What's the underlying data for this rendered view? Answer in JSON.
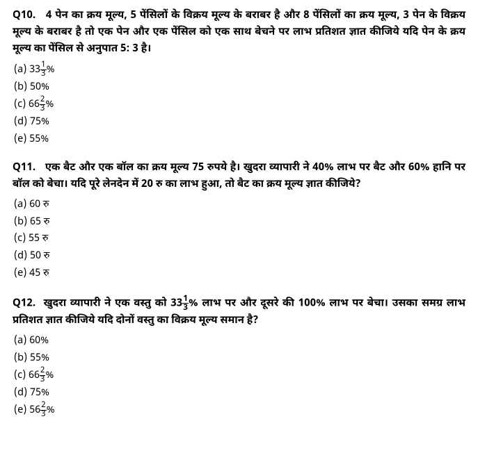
{
  "questions": [
    {
      "num": "Q10.",
      "text_parts": [
        "4 पेन का क्रय मूल्य, 5 पेंसिलों के विक्रय मूल्य के बराबर है और 8 पेंसिलों का क्रय मूल्य, 3 पेन के विक्रय मूल्य के बराबर है तो एक पेन और एक पेंसिल को एक साथ बेचने पर लाभ प्रतिशत ज्ञात कीजिये यदि पेन के क्रय मूल्य का पेंसिल से अनुपात 5: 3 है।"
      ],
      "options": [
        {
          "label": "(a)",
          "pre": "33",
          "num": "1",
          "den": "3",
          "post": "%"
        },
        {
          "label": "(b)",
          "pre": "50%",
          "num": "",
          "den": "",
          "post": ""
        },
        {
          "label": "(c)",
          "pre": "66",
          "num": "2",
          "den": "3",
          "post": "%"
        },
        {
          "label": "(d)",
          "pre": "75%",
          "num": "",
          "den": "",
          "post": ""
        },
        {
          "label": "(e)",
          "pre": "55%",
          "num": "",
          "den": "",
          "post": ""
        }
      ]
    },
    {
      "num": "Q11.",
      "text_parts": [
        "एक बैट और एक बॉल का क्रय मूल्य 75 रुपये है। खुदरा व्यापारी ने 40% लाभ पर बैट और 60% हानि पर बॉल को बेचा। यदि पूरे लेनदेन में 20 रु का लाभ हुआ, तो बैट का क्रय मूल्य ज्ञात कीजिये?"
      ],
      "options": [
        {
          "label": "(a)",
          "pre": " 60  रु",
          "num": "",
          "den": "",
          "post": ""
        },
        {
          "label": "(b)",
          "pre": "65  रु",
          "num": "",
          "den": "",
          "post": ""
        },
        {
          "label": "(c)",
          "pre": "55  रु",
          "num": "",
          "den": "",
          "post": ""
        },
        {
          "label": "(d)",
          "pre": "50  रु",
          "num": "",
          "den": "",
          "post": ""
        },
        {
          "label": "(e)",
          "pre": "45  रु",
          "num": "",
          "den": "",
          "post": ""
        }
      ]
    },
    {
      "num": "Q12.",
      "text_parts_a": "खुदरा व्यापारी ने एक वस्तु को 33",
      "frac_num": "1",
      "frac_den": "3",
      "text_parts_b": "% लाभ पर और दूसरे की 100% लाभ पर बेचा। उसका समग्र लाभ प्रतिशत ज्ञात कीजिये यदि दोनों वस्तु का विक्रय मूल्य समान है?",
      "options": [
        {
          "label": "(a)",
          "pre": "60%",
          "num": "",
          "den": "",
          "post": ""
        },
        {
          "label": "(b)",
          "pre": "55%",
          "num": "",
          "den": "",
          "post": ""
        },
        {
          "label": "(c)",
          "pre": "66",
          "num": "2",
          "den": "3",
          "post": "%"
        },
        {
          "label": "(d)",
          "pre": "75%",
          "num": "",
          "den": "",
          "post": ""
        },
        {
          "label": "(e)",
          "pre": "56",
          "num": "2",
          "den": "3",
          "post": "%"
        }
      ]
    }
  ],
  "colors": {
    "bg": "#ffffff",
    "text": "#000000"
  },
  "fonts": {
    "question_size": 15,
    "option_size": 14.5,
    "weight_q": 700,
    "weight_opt": 400
  }
}
